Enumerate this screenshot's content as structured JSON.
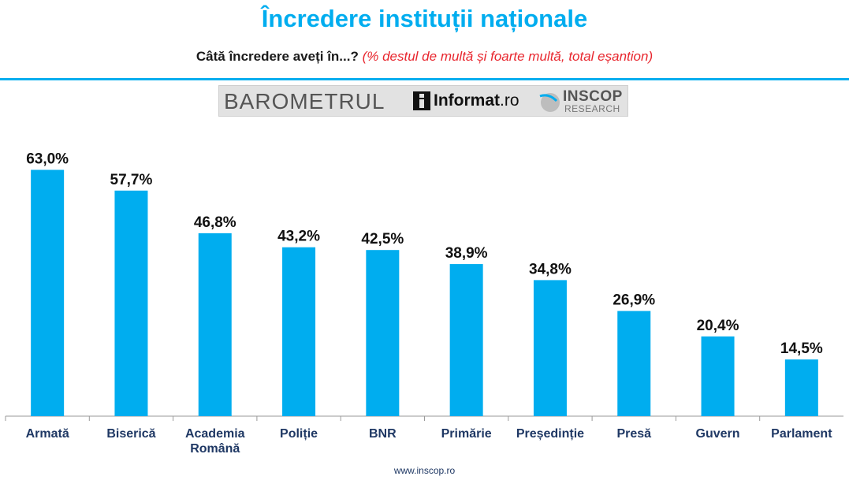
{
  "header": {
    "title": "Încredere instituții naționale",
    "question": "Câtă încredere aveți în...?",
    "note": "(%  destul de multă și foarte multă, total eșantion)"
  },
  "logos": {
    "barometru": "BAROMETRUL",
    "informat": "Informat",
    "informat_suffix": ".ro",
    "inscop": "INSCOP",
    "inscop_sub": "RESEARCH"
  },
  "footer": {
    "url": "www.inscop.ro"
  },
  "colors": {
    "accent": "#00adef",
    "note": "#e8262e",
    "category_text": "#1f3864"
  },
  "chart_data": {
    "type": "bar",
    "title": "Încredere instituții naționale",
    "categories": [
      [
        "Armată"
      ],
      [
        "Biserică"
      ],
      [
        "Academia",
        "Română"
      ],
      [
        "Poliție"
      ],
      [
        "BNR"
      ],
      [
        "Primărie"
      ],
      [
        "Președinție"
      ],
      [
        "Presă"
      ],
      [
        "Guvern"
      ],
      [
        "Parlament"
      ]
    ],
    "values": [
      63.0,
      57.7,
      46.8,
      43.2,
      42.5,
      38.9,
      34.8,
      26.9,
      20.4,
      14.5
    ],
    "value_labels": [
      "63,0%",
      "57,7%",
      "46,8%",
      "43,2%",
      "42,5%",
      "38,9%",
      "34,8%",
      "26,9%",
      "20,4%",
      "14,5%"
    ],
    "ylim": [
      0,
      70
    ],
    "grid": false,
    "legend": "none",
    "bar_color": "#00adef"
  }
}
